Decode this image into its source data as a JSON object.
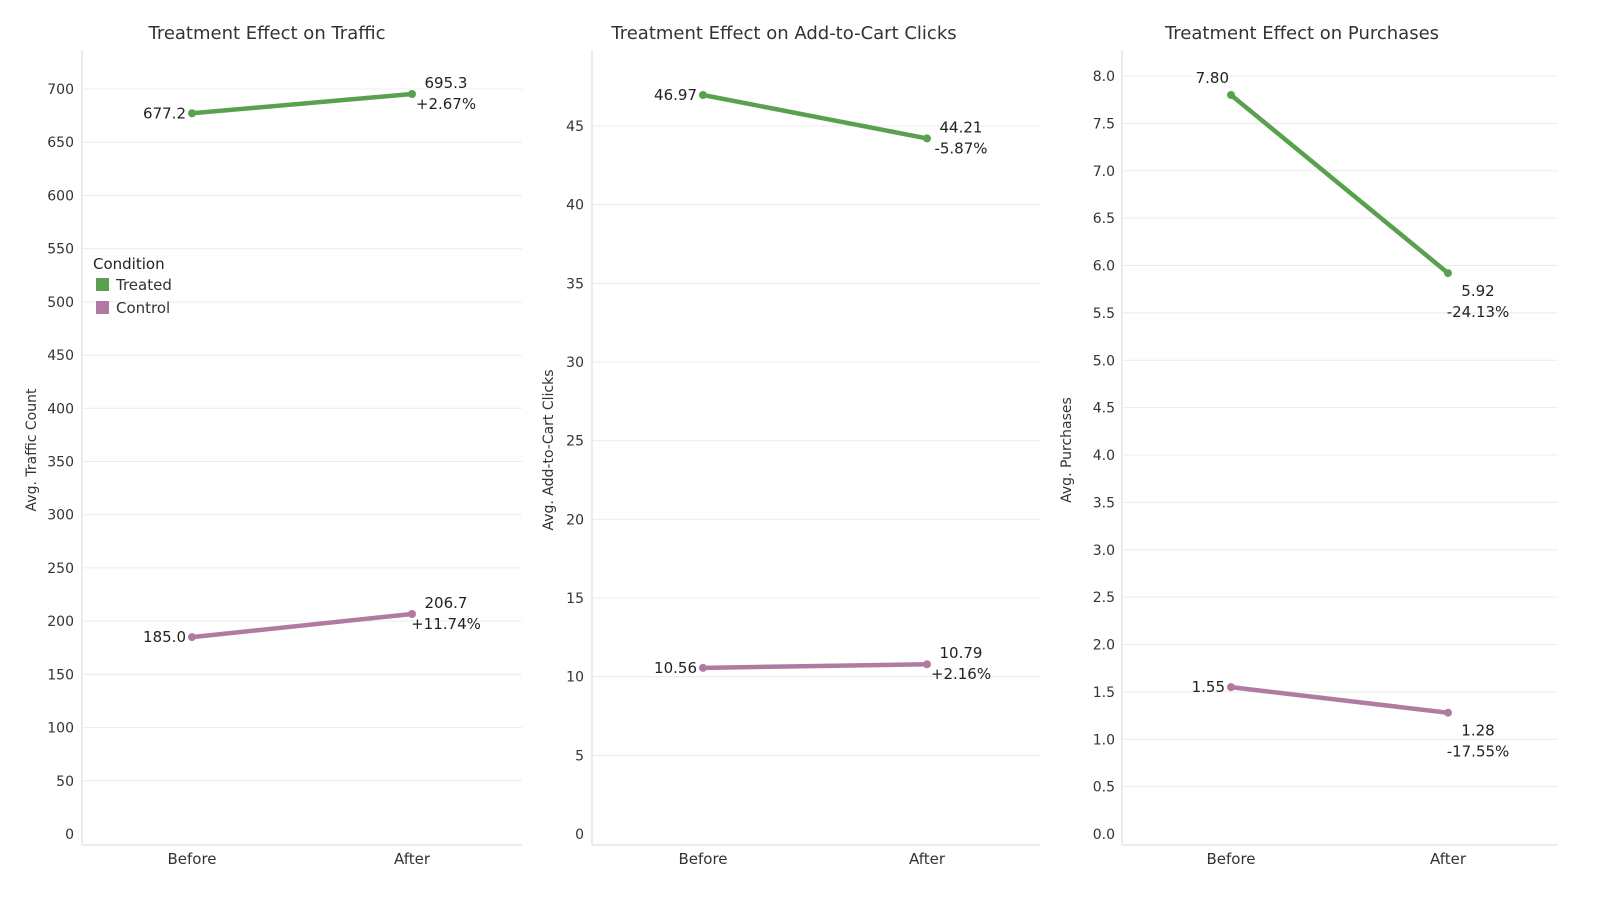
{
  "colors": {
    "Treated": "#59a14f",
    "Control": "#b07aa1"
  },
  "legend": {
    "title": "Condition",
    "items": [
      "Treated",
      "Control"
    ]
  },
  "chart_data": [
    {
      "type": "line",
      "title": "Treatment Effect on Traffic",
      "ylabel": "Avg. Traffic Count",
      "xlabel": "",
      "categories": [
        "Before",
        "After"
      ],
      "ylim": [
        0,
        730
      ],
      "yticks": [
        0,
        50,
        100,
        150,
        200,
        250,
        300,
        350,
        400,
        450,
        500,
        550,
        600,
        650,
        700
      ],
      "yticklabels": [
        "0",
        "50",
        "100",
        "150",
        "200",
        "250",
        "300",
        "350",
        "400",
        "450",
        "500",
        "550",
        "600",
        "650",
        "700"
      ],
      "series": [
        {
          "name": "Treated",
          "values": [
            677.2,
            695.3
          ],
          "labels": [
            "677.2",
            "695.3"
          ],
          "change": "+2.67%"
        },
        {
          "name": "Control",
          "values": [
            185.0,
            206.7
          ],
          "labels": [
            "185.0",
            "206.7"
          ],
          "change": "+11.74%"
        }
      ]
    },
    {
      "type": "line",
      "title": "Treatment Effect on Add-to-Cart Clicks",
      "ylabel": "Avg. Add-to-Cart Clicks",
      "xlabel": "",
      "categories": [
        "Before",
        "After"
      ],
      "ylim": [
        0,
        49
      ],
      "yticks": [
        0,
        5,
        10,
        15,
        20,
        25,
        30,
        35,
        40,
        45
      ],
      "yticklabels": [
        "0",
        "5",
        "10",
        "15",
        "20",
        "25",
        "30",
        "35",
        "40",
        "45"
      ],
      "series": [
        {
          "name": "Treated",
          "values": [
            46.97,
            44.21
          ],
          "labels": [
            "46.97",
            "44.21"
          ],
          "change": "-5.87%"
        },
        {
          "name": "Control",
          "values": [
            10.56,
            10.79
          ],
          "labels": [
            "10.56",
            "10.79"
          ],
          "change": "+2.16%"
        }
      ]
    },
    {
      "type": "line",
      "title": "Treatment Effect on Purchases",
      "ylabel": "Avg. Purchases",
      "xlabel": "",
      "categories": [
        "Before",
        "After"
      ],
      "ylim": [
        0,
        8.3
      ],
      "yticks": [
        0,
        0.5,
        1,
        1.5,
        2,
        2.5,
        3,
        3.5,
        4,
        4.5,
        5,
        5.5,
        6,
        6.5,
        7,
        7.5,
        8
      ],
      "yticklabels": [
        "0.0",
        "0.5",
        "1.0",
        "1.5",
        "2.0",
        "2.5",
        "3.0",
        "3.5",
        "4.0",
        "4.5",
        "5.0",
        "5.5",
        "6.0",
        "6.5",
        "7.0",
        "7.5",
        "8.0"
      ],
      "series": [
        {
          "name": "Treated",
          "values": [
            7.8,
            5.92
          ],
          "labels": [
            "7.80",
            "5.92"
          ],
          "change": "-24.13%"
        },
        {
          "name": "Control",
          "values": [
            1.55,
            1.28
          ],
          "labels": [
            "1.55",
            "1.28"
          ],
          "change": "-17.55%"
        }
      ]
    }
  ]
}
